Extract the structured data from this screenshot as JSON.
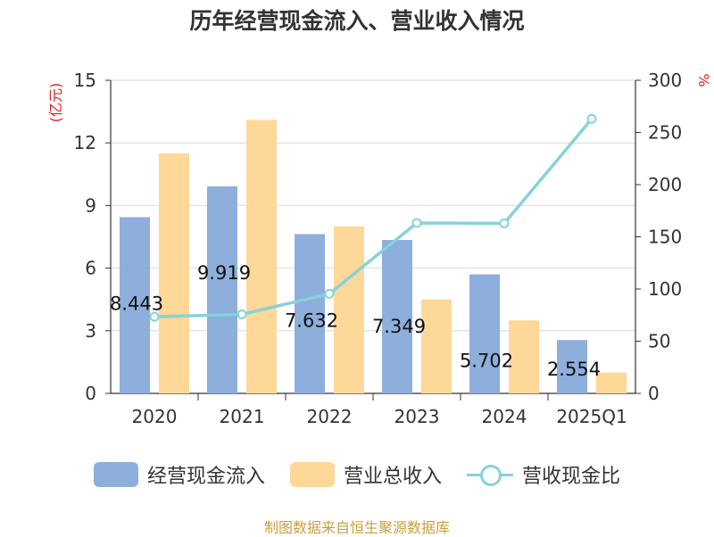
{
  "title": "历年经营现金流入、营业收入情况",
  "source": "制图数据来自恒生聚源数据库",
  "colors": {
    "cash_bar": "#8eaedb",
    "revenue_bar": "#fdd899",
    "ratio_line": "#86d2d8",
    "axis_unit": "#e02020",
    "source_text": "#c8a040"
  },
  "chart_data": {
    "type": "bar",
    "categories": [
      "2020",
      "2021",
      "2022",
      "2023",
      "2024",
      "2025Q1"
    ],
    "series": [
      {
        "name": "经营现金流入",
        "type": "bar",
        "axis": "left",
        "values": [
          8.443,
          9.919,
          7.632,
          7.349,
          5.702,
          2.554
        ],
        "labels": [
          "8.443",
          "9.919",
          "7.632",
          "7.349",
          "5.702",
          "2.554"
        ]
      },
      {
        "name": "营业总收入",
        "type": "bar",
        "axis": "left",
        "values": [
          11.5,
          13.1,
          8.0,
          4.5,
          3.5,
          1.0
        ]
      },
      {
        "name": "营收现金比",
        "type": "line",
        "axis": "right",
        "values": [
          73.4,
          75.7,
          95.4,
          163.3,
          162.9,
          263.0
        ]
      }
    ],
    "y_left": {
      "label": "(亿元)",
      "min": 0,
      "max": 15,
      "ticks": [
        "0",
        "3",
        "6",
        "9",
        "12",
        "15"
      ]
    },
    "y_right": {
      "label": "%",
      "min": 0,
      "max": 300,
      "ticks": [
        "0",
        "50",
        "100",
        "150",
        "200",
        "250",
        "300"
      ]
    },
    "grid": true,
    "legend_position": "bottom"
  },
  "legend": [
    {
      "label": "经营现金流入",
      "icon": "bar-swatch"
    },
    {
      "label": "营业总收入",
      "icon": "bar-swatch"
    },
    {
      "label": "营收现金比",
      "icon": "line-circle-swatch"
    }
  ]
}
